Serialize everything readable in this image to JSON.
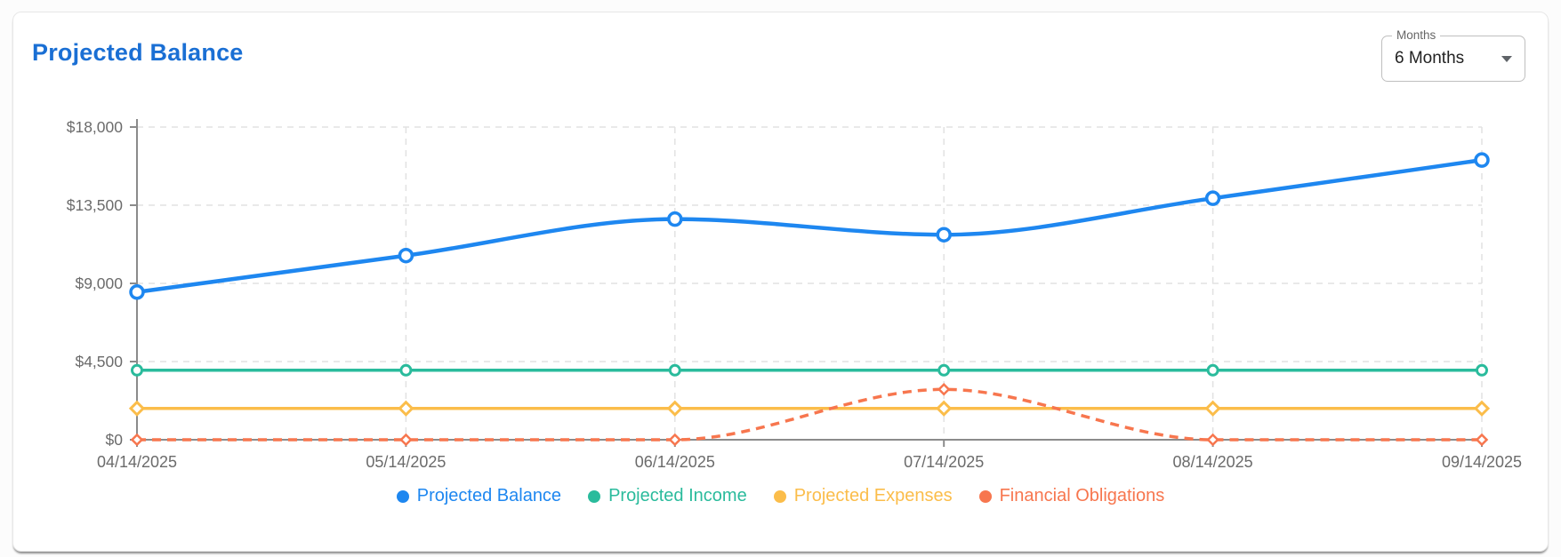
{
  "card": {
    "title": "Projected Balance",
    "title_color": "#1a6fd4"
  },
  "months_select": {
    "label": "Months",
    "value": "6 Months",
    "caret_icon": "chevron-down"
  },
  "chart_data": {
    "type": "line",
    "categories": [
      "04/14/2025",
      "05/14/2025",
      "06/14/2025",
      "07/14/2025",
      "08/14/2025",
      "09/14/2025"
    ],
    "series": [
      {
        "name": "Projected Balance",
        "color": "#1e87f0",
        "values": [
          8500,
          10600,
          12700,
          11800,
          13900,
          16100
        ],
        "dashed": false,
        "line_width": 4.5,
        "marker": "circle",
        "marker_size": 7,
        "marker_stroke": 3.5
      },
      {
        "name": "Projected Income",
        "color": "#2abb9c",
        "values": [
          4000,
          4000,
          4000,
          4000,
          4000,
          4000
        ],
        "dashed": false,
        "line_width": 3.5,
        "marker": "circle",
        "marker_size": 5.5,
        "marker_stroke": 3
      },
      {
        "name": "Projected Expenses",
        "color": "#fbbd4a",
        "values": [
          1800,
          1800,
          1800,
          1800,
          1800,
          1800
        ],
        "dashed": false,
        "line_width": 3.5,
        "marker": "diamond",
        "marker_size": 7,
        "marker_stroke": 3
      },
      {
        "name": "Financial Obligations",
        "color": "#f7764e",
        "values": [
          0,
          0,
          0,
          2900,
          0,
          0
        ],
        "dashed": true,
        "line_width": 3.5,
        "marker": "diamond",
        "marker_size": 5.5,
        "marker_stroke": 2.5
      }
    ],
    "ylim": [
      0,
      18000
    ],
    "y_ticks": [
      0,
      4500,
      9000,
      13500,
      18000
    ],
    "y_tick_labels": [
      "$0",
      "$4,500",
      "$9,000",
      "$13,500",
      "$18,000"
    ],
    "xlabel": "",
    "ylabel": "",
    "grid": "dashed-both-axes",
    "legend_position": "bottom",
    "style": {
      "axis_color": "#8b8b8b",
      "grid_color": "#e2e2e2",
      "tick_label_color": "#6b6b6b"
    }
  }
}
